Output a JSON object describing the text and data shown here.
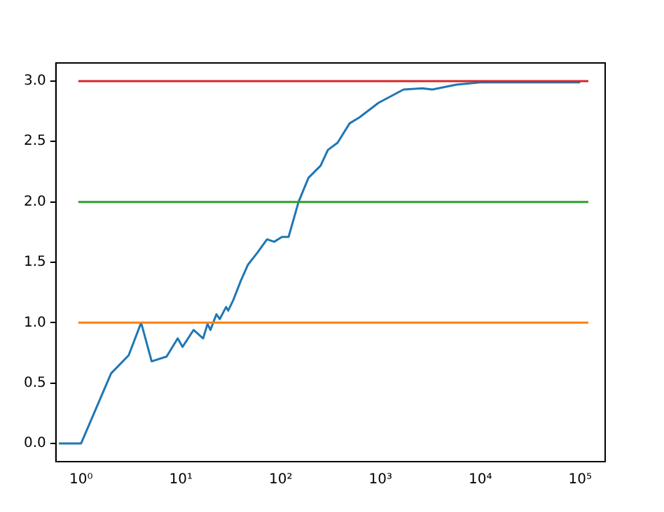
{
  "chart_data": {
    "type": "line",
    "log": "x",
    "x": [
      0.6,
      1,
      2,
      3,
      4,
      5.1,
      7.2,
      9.3,
      10.4,
      13.4,
      16.7,
      18.5,
      19.8,
      22.7,
      24.5,
      28.4,
      29.8,
      33.6,
      40,
      47,
      58.5,
      73,
      86,
      103,
      120,
      151,
      190,
      251,
      297,
      372,
      490,
      616,
      955,
      1700,
      2630,
      3300,
      5760,
      10000,
      30000,
      100000
    ],
    "series": [
      {
        "color": "#1f77b4",
        "values": [
          0,
          0,
          0.58,
          0.73,
          1.0,
          0.68,
          0.72,
          0.87,
          0.8,
          0.94,
          0.87,
          0.99,
          0.94,
          1.07,
          1.03,
          1.13,
          1.1,
          1.19,
          1.35,
          1.48,
          1.58,
          1.69,
          1.67,
          1.71,
          1.71,
          2.0,
          2.2,
          2.3,
          2.43,
          2.49,
          2.65,
          2.7,
          2.82,
          2.93,
          2.94,
          2.93,
          2.97,
          2.99,
          2.99,
          2.99
        ]
      }
    ],
    "xlim": [
      0.56,
      178000
    ],
    "xticks": [
      {
        "value": 1,
        "label": "10⁰"
      },
      {
        "value": 10,
        "label": "10¹"
      },
      {
        "value": 100,
        "label": "10²"
      },
      {
        "value": 1000,
        "label": "10³"
      },
      {
        "value": 10000,
        "label": "10⁴"
      },
      {
        "value": 100000,
        "label": "10⁵"
      }
    ],
    "ylim": [
      -0.15,
      3.15
    ],
    "yticks": [
      {
        "value": 0,
        "label": "0.0"
      },
      {
        "value": 0.5,
        "label": "0.5"
      },
      {
        "value": 1,
        "label": "1.0"
      },
      {
        "value": 1.5,
        "label": "1.5"
      },
      {
        "value": 2,
        "label": "2.0"
      },
      {
        "value": 2.5,
        "label": "2.5"
      },
      {
        "value": 3,
        "label": "3.0"
      }
    ],
    "ref_lines": [
      {
        "axis": "y",
        "value": 1,
        "color": "#ff7f0e"
      },
      {
        "axis": "y",
        "value": 2,
        "color": "#2ca02c"
      },
      {
        "axis": "y",
        "value": 3,
        "color": "#d62728"
      }
    ],
    "grid": false,
    "legend": false,
    "marker": "none",
    "line_style": "solid"
  }
}
